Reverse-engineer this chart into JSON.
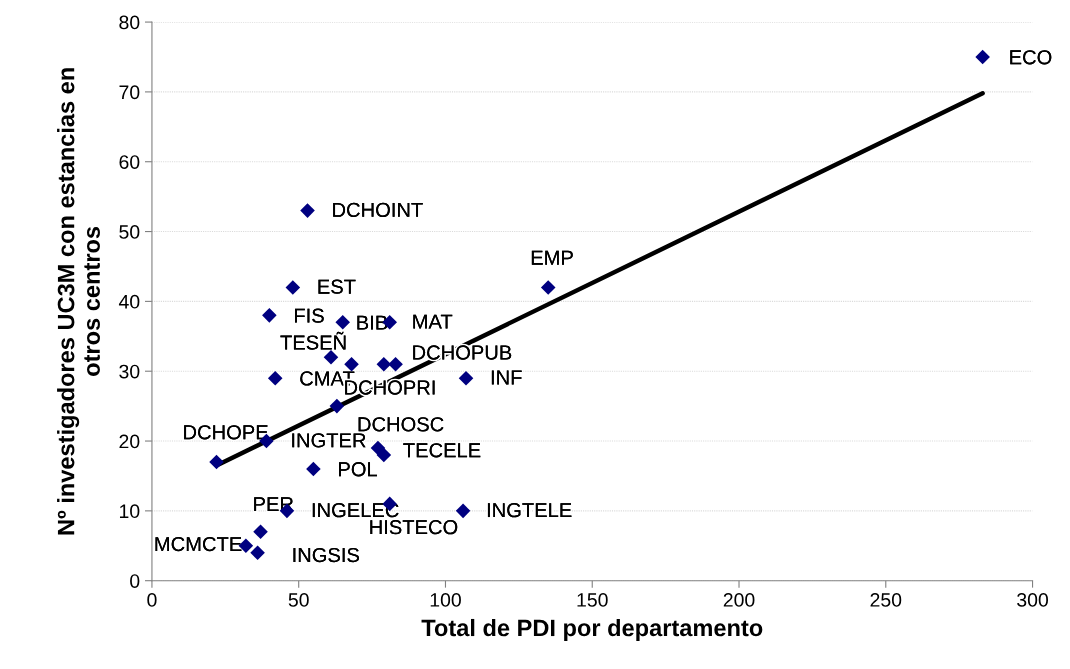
{
  "chart_data": {
    "type": "scatter",
    "xlabel": "Total de PDI por departamento",
    "ylabel": "Nº investigadores UC3M con estancias en otros centros",
    "series": [
      {
        "color": "#000080",
        "marker": "diamond",
        "x": [
          283,
          53,
          48,
          40,
          65,
          81,
          61,
          68,
          79,
          83,
          42,
          107,
          63,
          39,
          22,
          77,
          79,
          55,
          81,
          46,
          106,
          37,
          32,
          36,
          135
        ],
        "values": [
          75,
          53,
          42,
          38,
          37,
          37,
          32,
          31,
          31,
          31,
          29,
          29,
          25,
          20,
          17,
          19,
          18,
          16,
          11,
          10,
          10,
          7,
          5,
          4,
          42
        ]
      },
      {
        "type": "line",
        "color": "#000000",
        "line_style": "solid",
        "x": [
          22,
          283
        ],
        "values": [
          16.5,
          69.8
        ]
      }
    ],
    "annotations": [
      {
        "text": "ECO",
        "x": 283,
        "y": 75
      },
      {
        "text": "DCHOINT",
        "x": 53,
        "y": 53
      },
      {
        "text": "EST",
        "x": 48,
        "y": 42
      },
      {
        "text": "FIS",
        "x": 40,
        "y": 38
      },
      {
        "text": "BIB",
        "x": 65,
        "y": 37
      },
      {
        "text": "MAT",
        "x": 81,
        "y": 37
      },
      {
        "text": "TESEÑ",
        "x": 61,
        "y": 32
      },
      {
        "text": "DCHOPUB",
        "x": 83,
        "y": 31
      },
      {
        "text": "CMAT",
        "x": 42,
        "y": 29
      },
      {
        "text": "DCHOPRI",
        "x": 68,
        "y": 31
      },
      {
        "text": "INF",
        "x": 107,
        "y": 29
      },
      {
        "text": "DCHOPE",
        "x": 22,
        "y": 17
      },
      {
        "text": "INGTER",
        "x": 39,
        "y": 20
      },
      {
        "text": "DCHOSC",
        "x": 77,
        "y": 19
      },
      {
        "text": "TECELE",
        "x": 79,
        "y": 18
      },
      {
        "text": "POL",
        "x": 55,
        "y": 16
      },
      {
        "text": "PER",
        "x": 37,
        "y": 7
      },
      {
        "text": "INGELEC",
        "x": 46,
        "y": 10
      },
      {
        "text": "HISTECO",
        "x": 81,
        "y": 11
      },
      {
        "text": "INGTELE",
        "x": 106,
        "y": 10
      },
      {
        "text": "MCMCTE",
        "x": 32,
        "y": 5
      },
      {
        "text": "INGSIS",
        "x": 36,
        "y": 4
      },
      {
        "text": "EMP",
        "x": 135,
        "y": 42
      }
    ],
    "xlim": [
      0,
      300
    ],
    "xticks": [
      0,
      50,
      100,
      150,
      200,
      250,
      300
    ],
    "ylim": [
      0,
      80
    ],
    "yticks": [
      0,
      10,
      20,
      30,
      40,
      50,
      60,
      70,
      80
    ],
    "grid": "y"
  }
}
